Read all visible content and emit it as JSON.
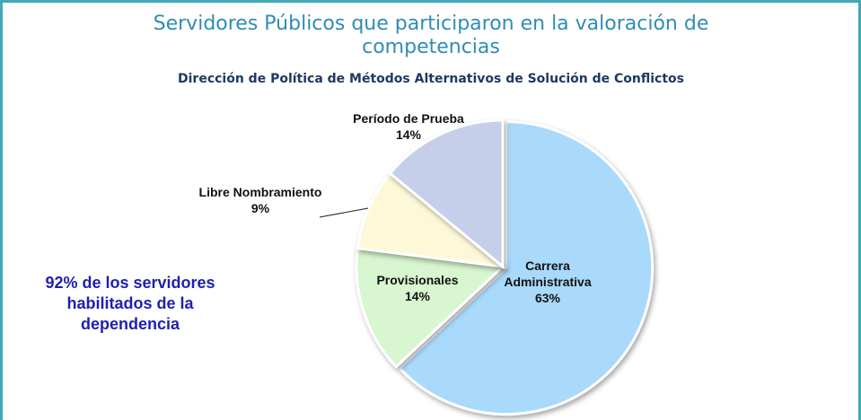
{
  "chart_data": {
    "type": "pie",
    "title": "Servidores Públicos que participaron en la valoración de competencias",
    "subtitle": "Dirección de Política de Métodos Alternativos de Solución de Conflictos",
    "annotation": "92% de los servidores habilitados de la dependencia",
    "categories": [
      "Carrera Administrativa",
      "Provisionales",
      "Libre Nombramiento",
      "Período de Prueba"
    ],
    "values": [
      63,
      14,
      9,
      14
    ],
    "value_labels": [
      "63%",
      "14%",
      "9%",
      "14%"
    ],
    "colors": [
      "#a9d9fb",
      "#d8f6cf",
      "#fdf9d8",
      "#c6cfe9"
    ]
  }
}
